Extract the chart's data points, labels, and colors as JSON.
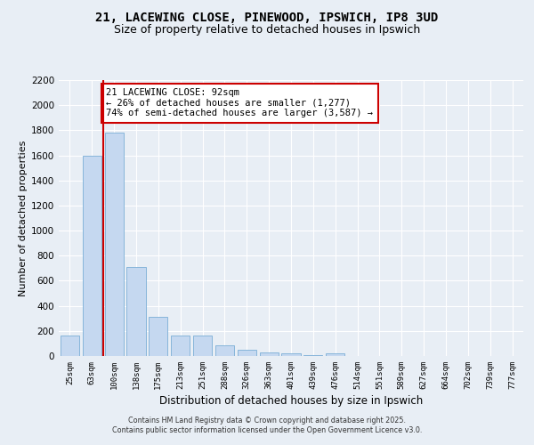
{
  "title_line1": "21, LACEWING CLOSE, PINEWOOD, IPSWICH, IP8 3UD",
  "title_line2": "Size of property relative to detached houses in Ipswich",
  "xlabel": "Distribution of detached houses by size in Ipswich",
  "ylabel": "Number of detached properties",
  "categories": [
    "25sqm",
    "63sqm",
    "100sqm",
    "138sqm",
    "175sqm",
    "213sqm",
    "251sqm",
    "288sqm",
    "326sqm",
    "363sqm",
    "401sqm",
    "439sqm",
    "476sqm",
    "514sqm",
    "551sqm",
    "589sqm",
    "627sqm",
    "664sqm",
    "702sqm",
    "739sqm",
    "777sqm"
  ],
  "values": [
    165,
    1600,
    1780,
    710,
    315,
    160,
    160,
    88,
    50,
    27,
    18,
    5,
    20,
    0,
    0,
    0,
    0,
    0,
    0,
    0,
    0
  ],
  "bar_color": "#c5d8f0",
  "bar_edgecolor": "#7aaed6",
  "annotation_text": "21 LACEWING CLOSE: 92sqm\n← 26% of detached houses are smaller (1,277)\n74% of semi-detached houses are larger (3,587) →",
  "annotation_box_color": "#ffffff",
  "annotation_box_edgecolor": "#cc0000",
  "vline_color": "#cc0000",
  "ylim": [
    0,
    2200
  ],
  "yticks": [
    0,
    200,
    400,
    600,
    800,
    1000,
    1200,
    1400,
    1600,
    1800,
    2000,
    2200
  ],
  "background_color": "#e8eef5",
  "grid_color": "#ffffff",
  "footer_line1": "Contains HM Land Registry data © Crown copyright and database right 2025.",
  "footer_line2": "Contains public sector information licensed under the Open Government Licence v3.0."
}
